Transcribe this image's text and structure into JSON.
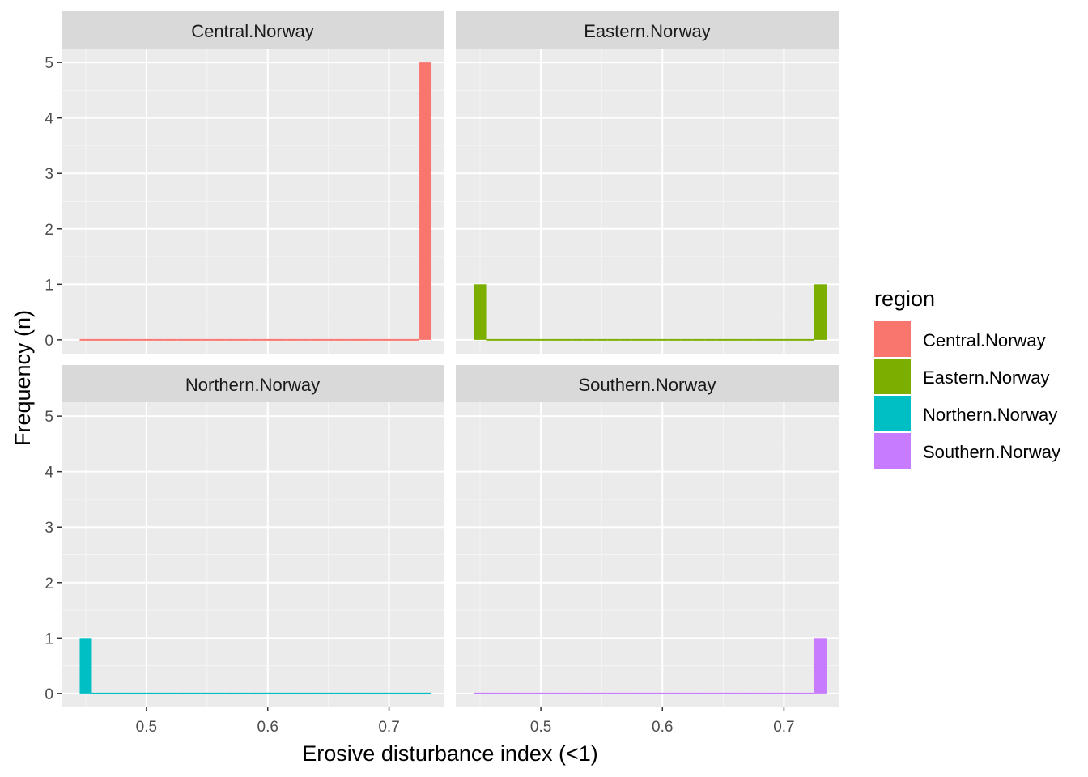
{
  "chart_data": {
    "type": "bar",
    "subtype": "histogram-faceted",
    "xlabel": "Erosive disturbance index (<1)",
    "ylabel": "Frequency (n)",
    "xlim": [
      0.43,
      0.745
    ],
    "ylim": [
      -0.25,
      5.25
    ],
    "xticks": [
      0.5,
      0.6,
      0.7
    ],
    "xtick_labels": [
      "0.5",
      "0.6",
      "0.7"
    ],
    "yticks": [
      0,
      1,
      2,
      3,
      4,
      5
    ],
    "ytick_labels": [
      "0",
      "1",
      "2",
      "3",
      "4",
      "5"
    ],
    "grid": true,
    "bin_width": 0.01,
    "bins_start": 0.445,
    "bins_end": 0.74,
    "legend": {
      "title": "region",
      "position": "right",
      "entries": [
        {
          "label": "Central.Norway",
          "color": "#F8766D"
        },
        {
          "label": "Eastern.Norway",
          "color": "#7CAE00"
        },
        {
          "label": "Northern.Norway",
          "color": "#00BFC4"
        },
        {
          "label": "Southern.Norway",
          "color": "#C77CFF"
        }
      ]
    },
    "panels": [
      {
        "name": "Central.Norway",
        "color": "#F8766D",
        "bars": [
          {
            "x_start": 0.73,
            "x_end": 0.74,
            "count": 5
          }
        ]
      },
      {
        "name": "Eastern.Norway",
        "color": "#7CAE00",
        "bars": [
          {
            "x_start": 0.445,
            "x_end": 0.455,
            "count": 1
          },
          {
            "x_start": 0.73,
            "x_end": 0.74,
            "count": 1
          }
        ]
      },
      {
        "name": "Northern.Norway",
        "color": "#00BFC4",
        "bars": [
          {
            "x_start": 0.445,
            "x_end": 0.455,
            "count": 1
          }
        ]
      },
      {
        "name": "Southern.Norway",
        "color": "#C77CFF",
        "bars": [
          {
            "x_start": 0.73,
            "x_end": 0.74,
            "count": 1
          }
        ]
      }
    ]
  }
}
